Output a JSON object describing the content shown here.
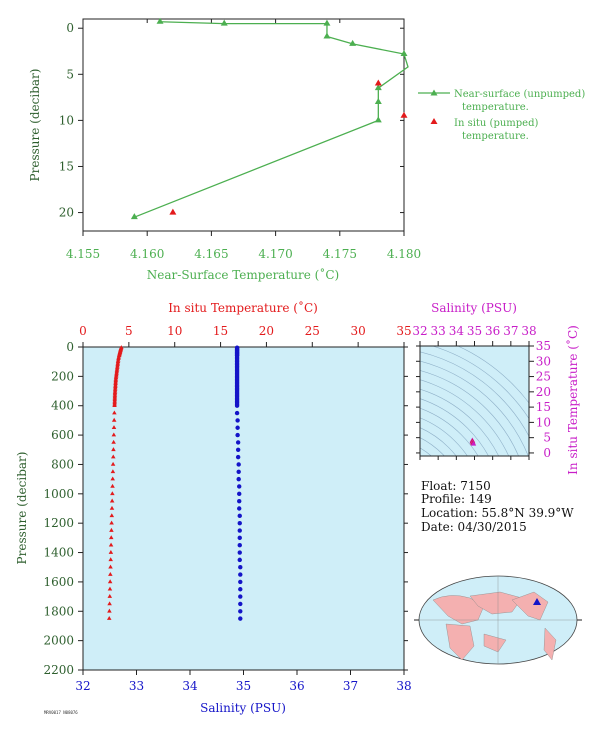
{
  "colors": {
    "green": "#4caf50",
    "dark_green": "#2e5f2e",
    "red": "#e31a1c",
    "blue": "#1414c8",
    "magenta": "#c81ec8",
    "panel_bg": "#cfeef8",
    "land": "#f4b0b0",
    "ocean": "#cfeef8"
  },
  "float_info": {
    "float": "Float:  7150",
    "profile": "Profile:  149",
    "location": "Location:  55.8°N  39.9°W",
    "date": "Date:  04/30/2015"
  },
  "footer_text": "MRV0017 N08076",
  "chart_data": [
    {
      "id": "near_surface",
      "type": "line",
      "xlabel": "Near-Surface Temperature (˚C)",
      "ylabel": "Pressure (decibar)",
      "xlim": [
        4.155,
        4.18
      ],
      "ylim": [
        22,
        -1
      ],
      "xticks": [
        "4.155",
        "4.160",
        "4.165",
        "4.170",
        "4.175",
        "4.180"
      ],
      "yticks": [
        "0",
        "5",
        "10",
        "15",
        "20"
      ],
      "series": [
        {
          "name": "Near-surface (unpumped)",
          "name_line2": "temperature.",
          "x": [
            4.159,
            4.178,
            4.178,
            4.178,
            4.1805,
            4.18,
            4.176,
            4.174,
            4.174,
            4.166,
            4.161
          ],
          "y": [
            20.5,
            10,
            8,
            6.5,
            4.2,
            2.8,
            1.7,
            0.9,
            -0.5,
            -0.5,
            -0.7
          ]
        },
        {
          "name": "In situ (pumped)",
          "name_line2": "temperature.",
          "x": [
            4.162,
            4.178,
            4.18
          ],
          "y": [
            20,
            6,
            9.5
          ]
        }
      ]
    },
    {
      "id": "profile",
      "type": "scatter",
      "top_xlabel": "In situ Temperature (˚C)",
      "bottom_xlabel": "Salinity (PSU)",
      "ylabel": "Pressure (decibar)",
      "temp_lim": [
        0,
        35
      ],
      "sal_lim": [
        32,
        38
      ],
      "ylim": [
        2200,
        0
      ],
      "temp_ticks": [
        "0",
        "5",
        "10",
        "15",
        "20",
        "25",
        "30",
        "35"
      ],
      "sal_ticks": [
        "32",
        "33",
        "34",
        "35",
        "36",
        "37",
        "38"
      ],
      "yticks": [
        "0",
        "200",
        "400",
        "600",
        "800",
        "1000",
        "1200",
        "1400",
        "1600",
        "1800",
        "2000",
        "2200"
      ],
      "temperature": {
        "pressure": [
          5,
          10,
          15,
          20,
          25,
          30,
          35,
          40,
          45,
          50,
          55,
          60,
          70,
          80,
          90,
          100,
          110,
          120,
          130,
          140,
          150,
          160,
          170,
          180,
          190,
          200,
          210,
          220,
          230,
          240,
          250,
          260,
          270,
          280,
          290,
          300,
          310,
          320,
          330,
          340,
          350,
          360,
          370,
          380,
          390,
          400,
          450,
          500,
          550,
          600,
          650,
          700,
          750,
          800,
          850,
          900,
          950,
          1000,
          1050,
          1100,
          1150,
          1200,
          1250,
          1300,
          1350,
          1400,
          1450,
          1500,
          1550,
          1600,
          1650,
          1700,
          1750,
          1800,
          1850
        ],
        "values": [
          4.18,
          4.15,
          4.12,
          4.1,
          4.08,
          4.06,
          4.04,
          4.02,
          4.0,
          3.98,
          3.96,
          3.94,
          3.9,
          3.87,
          3.84,
          3.82,
          3.8,
          3.78,
          3.76,
          3.74,
          3.72,
          3.7,
          3.68,
          3.66,
          3.64,
          3.62,
          3.6,
          3.58,
          3.57,
          3.56,
          3.55,
          3.54,
          3.53,
          3.52,
          3.51,
          3.5,
          3.49,
          3.48,
          3.48,
          3.47,
          3.47,
          3.46,
          3.46,
          3.45,
          3.45,
          3.44,
          3.42,
          3.4,
          3.38,
          3.36,
          3.34,
          3.32,
          3.3,
          3.28,
          3.26,
          3.24,
          3.22,
          3.2,
          3.18,
          3.16,
          3.14,
          3.12,
          3.1,
          3.08,
          3.06,
          3.04,
          3.02,
          3.0,
          2.98,
          2.96,
          2.94,
          2.92,
          2.9,
          2.88,
          2.86
        ]
      },
      "salinity": {
        "pressure": [
          5,
          10,
          15,
          20,
          25,
          30,
          35,
          40,
          45,
          50,
          55,
          60,
          70,
          80,
          90,
          100,
          110,
          120,
          130,
          140,
          150,
          160,
          170,
          180,
          190,
          200,
          210,
          220,
          230,
          240,
          250,
          260,
          270,
          280,
          290,
          300,
          310,
          320,
          330,
          340,
          350,
          360,
          370,
          380,
          390,
          400,
          450,
          500,
          550,
          600,
          650,
          700,
          750,
          800,
          850,
          900,
          950,
          1000,
          1050,
          1100,
          1150,
          1200,
          1250,
          1300,
          1350,
          1400,
          1450,
          1500,
          1550,
          1600,
          1650,
          1700,
          1750,
          1800,
          1850
        ],
        "values": [
          34.88,
          34.88,
          34.88,
          34.88,
          34.88,
          34.88,
          34.88,
          34.88,
          34.88,
          34.88,
          34.88,
          34.88,
          34.88,
          34.88,
          34.88,
          34.88,
          34.88,
          34.88,
          34.88,
          34.88,
          34.88,
          34.88,
          34.88,
          34.88,
          34.88,
          34.88,
          34.88,
          34.88,
          34.88,
          34.88,
          34.88,
          34.88,
          34.88,
          34.88,
          34.88,
          34.88,
          34.88,
          34.88,
          34.88,
          34.88,
          34.88,
          34.88,
          34.88,
          34.88,
          34.88,
          34.88,
          34.88,
          34.89,
          34.89,
          34.89,
          34.9,
          34.9,
          34.9,
          34.91,
          34.91,
          34.91,
          34.92,
          34.92,
          34.92,
          34.92,
          34.93,
          34.93,
          34.93,
          34.93,
          34.93,
          34.93,
          34.93,
          34.94,
          34.94,
          34.94,
          34.94,
          34.94,
          34.94,
          34.94,
          34.94
        ]
      }
    },
    {
      "id": "ts_diagram",
      "type": "scatter",
      "top_xlabel": "Salinity (PSU)",
      "ylabel": "In situ Temperature (˚C)",
      "xlim": [
        32,
        38
      ],
      "ylim": [
        -1,
        35
      ],
      "xticks": [
        "32",
        "33",
        "34",
        "35",
        "36",
        "37",
        "38"
      ],
      "yticks": [
        "0",
        "5",
        "10",
        "15",
        "20",
        "25",
        "30",
        "35"
      ],
      "points": {
        "salinity": [
          34.88,
          34.89,
          34.9,
          34.92,
          34.94
        ],
        "temperature": [
          4.0,
          3.7,
          3.4,
          3.1,
          2.9
        ]
      }
    }
  ]
}
